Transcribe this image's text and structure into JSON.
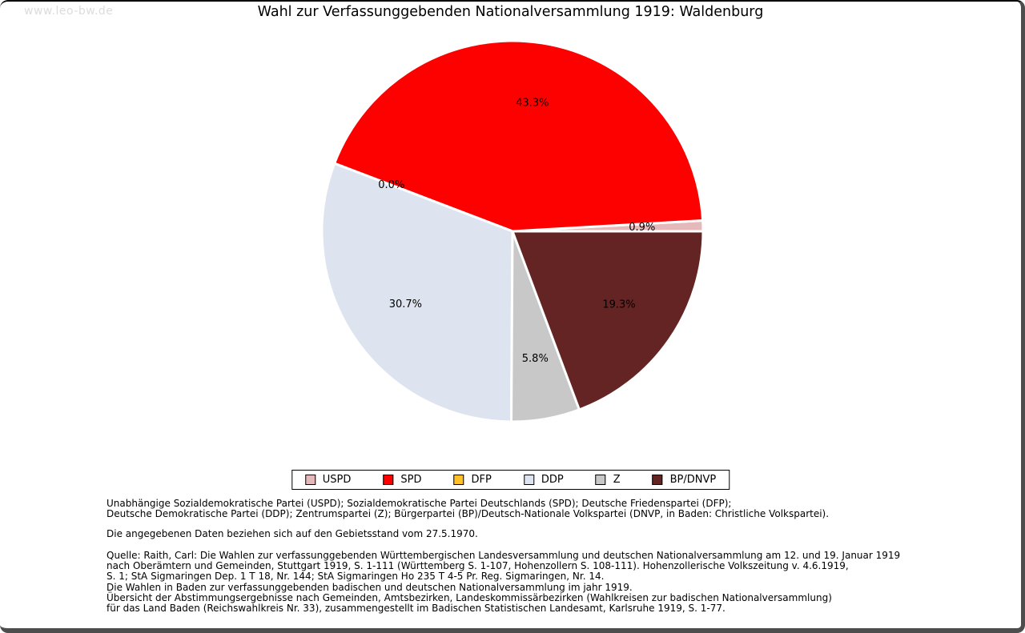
{
  "watermark": "www.leo-bw.de",
  "title": "Wahl zur Verfassunggebenden Nationalversammlung 1919: Waldenburg",
  "chart_data": {
    "type": "pie",
    "title": "Wahl zur Verfassunggebenden Nationalversammlung 1919: Waldenburg",
    "value_unit": "percent",
    "start_angle_deg": 0,
    "direction": "counterclockwise",
    "label_radius_fraction": 0.68,
    "separator_color": "#ffffff",
    "legend_position": "bottom",
    "slices": [
      {
        "label": "USPD",
        "value": 0.9,
        "color": "#e5b8ba"
      },
      {
        "label": "SPD",
        "value": 43.3,
        "color": "#fd0100"
      },
      {
        "label": "DFP",
        "value": 0.0,
        "color": "#ffc125"
      },
      {
        "label": "DDP",
        "value": 30.7,
        "color": "#dde4f0"
      },
      {
        "label": "Z",
        "value": 5.8,
        "color": "#c8c8c8"
      },
      {
        "label": "BP/DNVP",
        "value": 19.3,
        "color": "#632423"
      }
    ]
  },
  "notes": {
    "parties": [
      "Unabhängige Sozialdemokratische Partei (USPD); Sozialdemokratische Partei Deutschlands (SPD); Deutsche Friedenspartei (DFP);",
      "Deutsche Demokratische Partei (DDP); Zentrumspartei (Z); Bürgerpartei (BP)/Deutsch-Nationale Volkspartei (DNVP, in Baden: Christliche Volkspartei)."
    ],
    "gebietsstand": "Die angegebenen Daten beziehen sich auf den Gebietsstand vom 27.5.1970.",
    "source": [
      "Quelle: Raith, Carl: Die Wahlen zur verfassunggebenden Württembergischen Landesversammlung und deutschen Nationalversammlung am 12. und 19. Januar 1919",
      "nach Oberämtern und Gemeinden, Stuttgart 1919, S. 1-111 (Württemberg S. 1-107, Hohenzollern S. 108-111). Hohenzollerische Volkszeitung v. 4.6.1919,",
      "S. 1; StA Sigmaringen Dep. 1 T 18, Nr. 144; StA Sigmaringen Ho 235 T 4-5 Pr. Reg. Sigmaringen, Nr. 14.",
      "Die Wahlen in Baden zur verfassunggebenden badischen und deutschen Nationalversammlung im jahr 1919.",
      "Übersicht der Abstimmungsergebnisse nach Gemeinden, Amtsbezirken, Landeskommissärbezirken (Wahlkreisen zur badischen Nationalversammlung)",
      "für das Land Baden (Reichswahlkreis Nr. 33), zusammengestellt im Badischen Statistischen Landesamt, Karlsruhe 1919, S. 1-77."
    ]
  }
}
